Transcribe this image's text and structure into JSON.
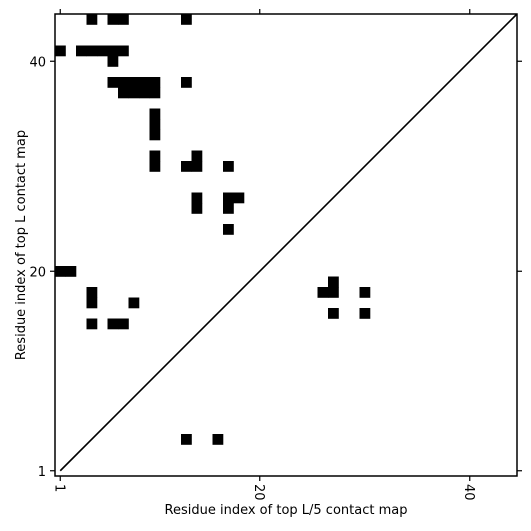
{
  "chart_data": {
    "type": "heatmap",
    "title": "",
    "xlabel": "Residue index of top L/5 contact map",
    "ylabel": "Residue index of top L contact map",
    "xlim": [
      0.5,
      44.5
    ],
    "ylim": [
      0.5,
      44.5
    ],
    "xticks": [
      1,
      20,
      40
    ],
    "yticks": [
      1,
      20,
      40
    ],
    "diagonal": true,
    "cell_color": "#000000",
    "upper_left_contacts": [
      [
        4,
        44
      ],
      [
        6,
        44
      ],
      [
        7,
        44
      ],
      [
        13,
        44
      ],
      [
        1,
        41
      ],
      [
        3,
        41
      ],
      [
        4,
        41
      ],
      [
        5,
        41
      ],
      [
        6,
        41
      ],
      [
        7,
        41
      ],
      [
        6,
        40
      ],
      [
        6,
        38
      ],
      [
        7,
        38
      ],
      [
        8,
        38
      ],
      [
        9,
        38
      ],
      [
        10,
        38
      ],
      [
        13,
        38
      ],
      [
        7,
        37
      ],
      [
        8,
        37
      ],
      [
        9,
        37
      ],
      [
        10,
        37
      ],
      [
        10,
        35
      ],
      [
        10,
        34
      ],
      [
        10,
        33
      ],
      [
        10,
        31
      ],
      [
        14,
        31
      ],
      [
        10,
        30
      ],
      [
        13,
        30
      ],
      [
        14,
        30
      ],
      [
        17,
        30
      ],
      [
        14,
        27
      ],
      [
        17,
        27
      ],
      [
        18,
        27
      ],
      [
        14,
        26
      ],
      [
        17,
        26
      ],
      [
        17,
        24
      ],
      [
        1,
        20
      ],
      [
        2,
        20
      ],
      [
        4,
        18
      ],
      [
        4,
        17
      ],
      [
        8,
        17
      ],
      [
        4,
        15
      ],
      [
        6,
        15
      ],
      [
        7,
        15
      ]
    ],
    "lower_right_contacts": [
      [
        27,
        19
      ],
      [
        26,
        18
      ],
      [
        27,
        18
      ],
      [
        30,
        18
      ],
      [
        27,
        16
      ],
      [
        30,
        16
      ],
      [
        13,
        4
      ],
      [
        16,
        4
      ]
    ]
  }
}
